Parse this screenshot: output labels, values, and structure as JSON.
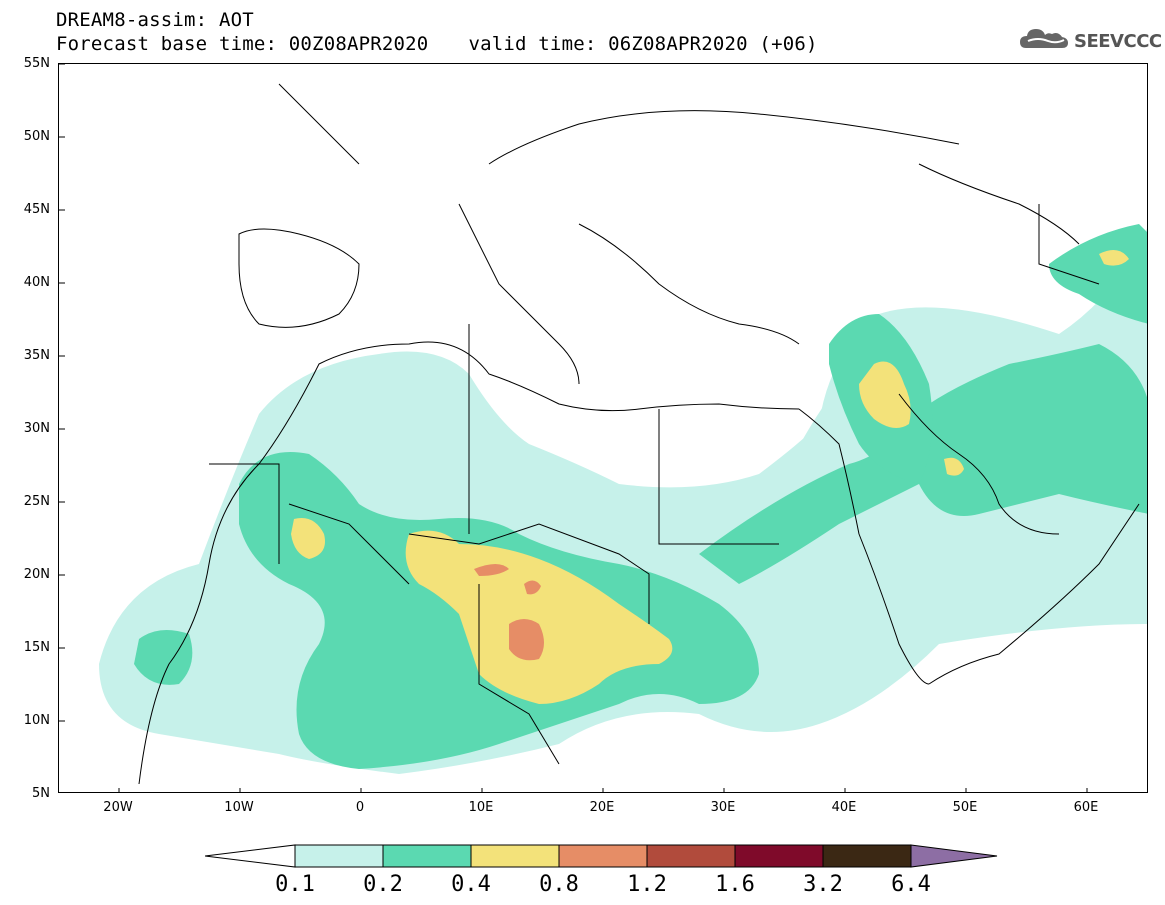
{
  "header": {
    "title": "DREAM8-assim: AOT",
    "base_time": "Forecast base time: 00Z08APR2020",
    "valid_time": "valid time: 06Z08APR2020 (+06)"
  },
  "logo": {
    "text": "SEEVCCC",
    "icon": "cloud-icon"
  },
  "map": {
    "lat_labels": [
      "55N",
      "50N",
      "45N",
      "40N",
      "35N",
      "30N",
      "25N",
      "20N",
      "15N",
      "10N",
      "5N"
    ],
    "lon_labels": [
      "20W",
      "10W",
      "0",
      "10E",
      "20E",
      "30E",
      "40E",
      "50E",
      "60E"
    ],
    "lon_range": [
      -25,
      65
    ],
    "lat_range": [
      5,
      55
    ]
  },
  "colorbar": {
    "labels": [
      "0.1",
      "0.2",
      "0.4",
      "0.8",
      "1.2",
      "1.6",
      "3.2",
      "6.4"
    ],
    "colors": [
      "#ffffff",
      "#c6f1ea",
      "#5bd9b1",
      "#f3e27a",
      "#e68d66",
      "#b14b3c",
      "#7f0a2a",
      "#3b2814",
      "#8d6ea4"
    ]
  },
  "colors": {
    "level_0_1": "#c6f1ea",
    "level_0_2": "#5bd9b1",
    "level_0_4": "#f3e27a",
    "level_0_8": "#e68d66",
    "level_1_2": "#b14b3c"
  }
}
